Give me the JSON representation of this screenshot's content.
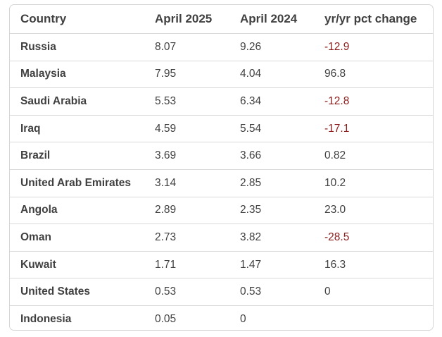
{
  "table": {
    "headers": [
      "Country",
      "April 2025",
      "April 2024",
      "yr/yr pct change"
    ],
    "rows": [
      {
        "country": "Russia",
        "apr2025": "8.07",
        "apr2024": "9.26",
        "change": "-12.9",
        "negative": true
      },
      {
        "country": "Malaysia",
        "apr2025": "7.95",
        "apr2024": "4.04",
        "change": "96.8",
        "negative": false
      },
      {
        "country": "Saudi Arabia",
        "apr2025": "5.53",
        "apr2024": "6.34",
        "change": "-12.8",
        "negative": true
      },
      {
        "country": "Iraq",
        "apr2025": "4.59",
        "apr2024": "5.54",
        "change": "-17.1",
        "negative": true
      },
      {
        "country": "Brazil",
        "apr2025": "3.69",
        "apr2024": "3.66",
        "change": "0.82",
        "negative": false
      },
      {
        "country": "United Arab Emirates",
        "apr2025": "3.14",
        "apr2024": "2.85",
        "change": "10.2",
        "negative": false
      },
      {
        "country": "Angola",
        "apr2025": "2.89",
        "apr2024": "2.35",
        "change": "23.0",
        "negative": false
      },
      {
        "country": "Oman",
        "apr2025": "2.73",
        "apr2024": "3.82",
        "change": "-28.5",
        "negative": true
      },
      {
        "country": "Kuwait",
        "apr2025": "1.71",
        "apr2024": "1.47",
        "change": "16.3",
        "negative": false
      },
      {
        "country": "United States",
        "apr2025": "0.53",
        "apr2024": "0.53",
        "change": "0",
        "negative": false
      },
      {
        "country": "Indonesia",
        "apr2025": "0.05",
        "apr2024": "0",
        "change": "",
        "negative": false
      }
    ]
  },
  "colors": {
    "text": "#404040",
    "negative": "#8b1a1a",
    "border": "#d9d9d9"
  }
}
